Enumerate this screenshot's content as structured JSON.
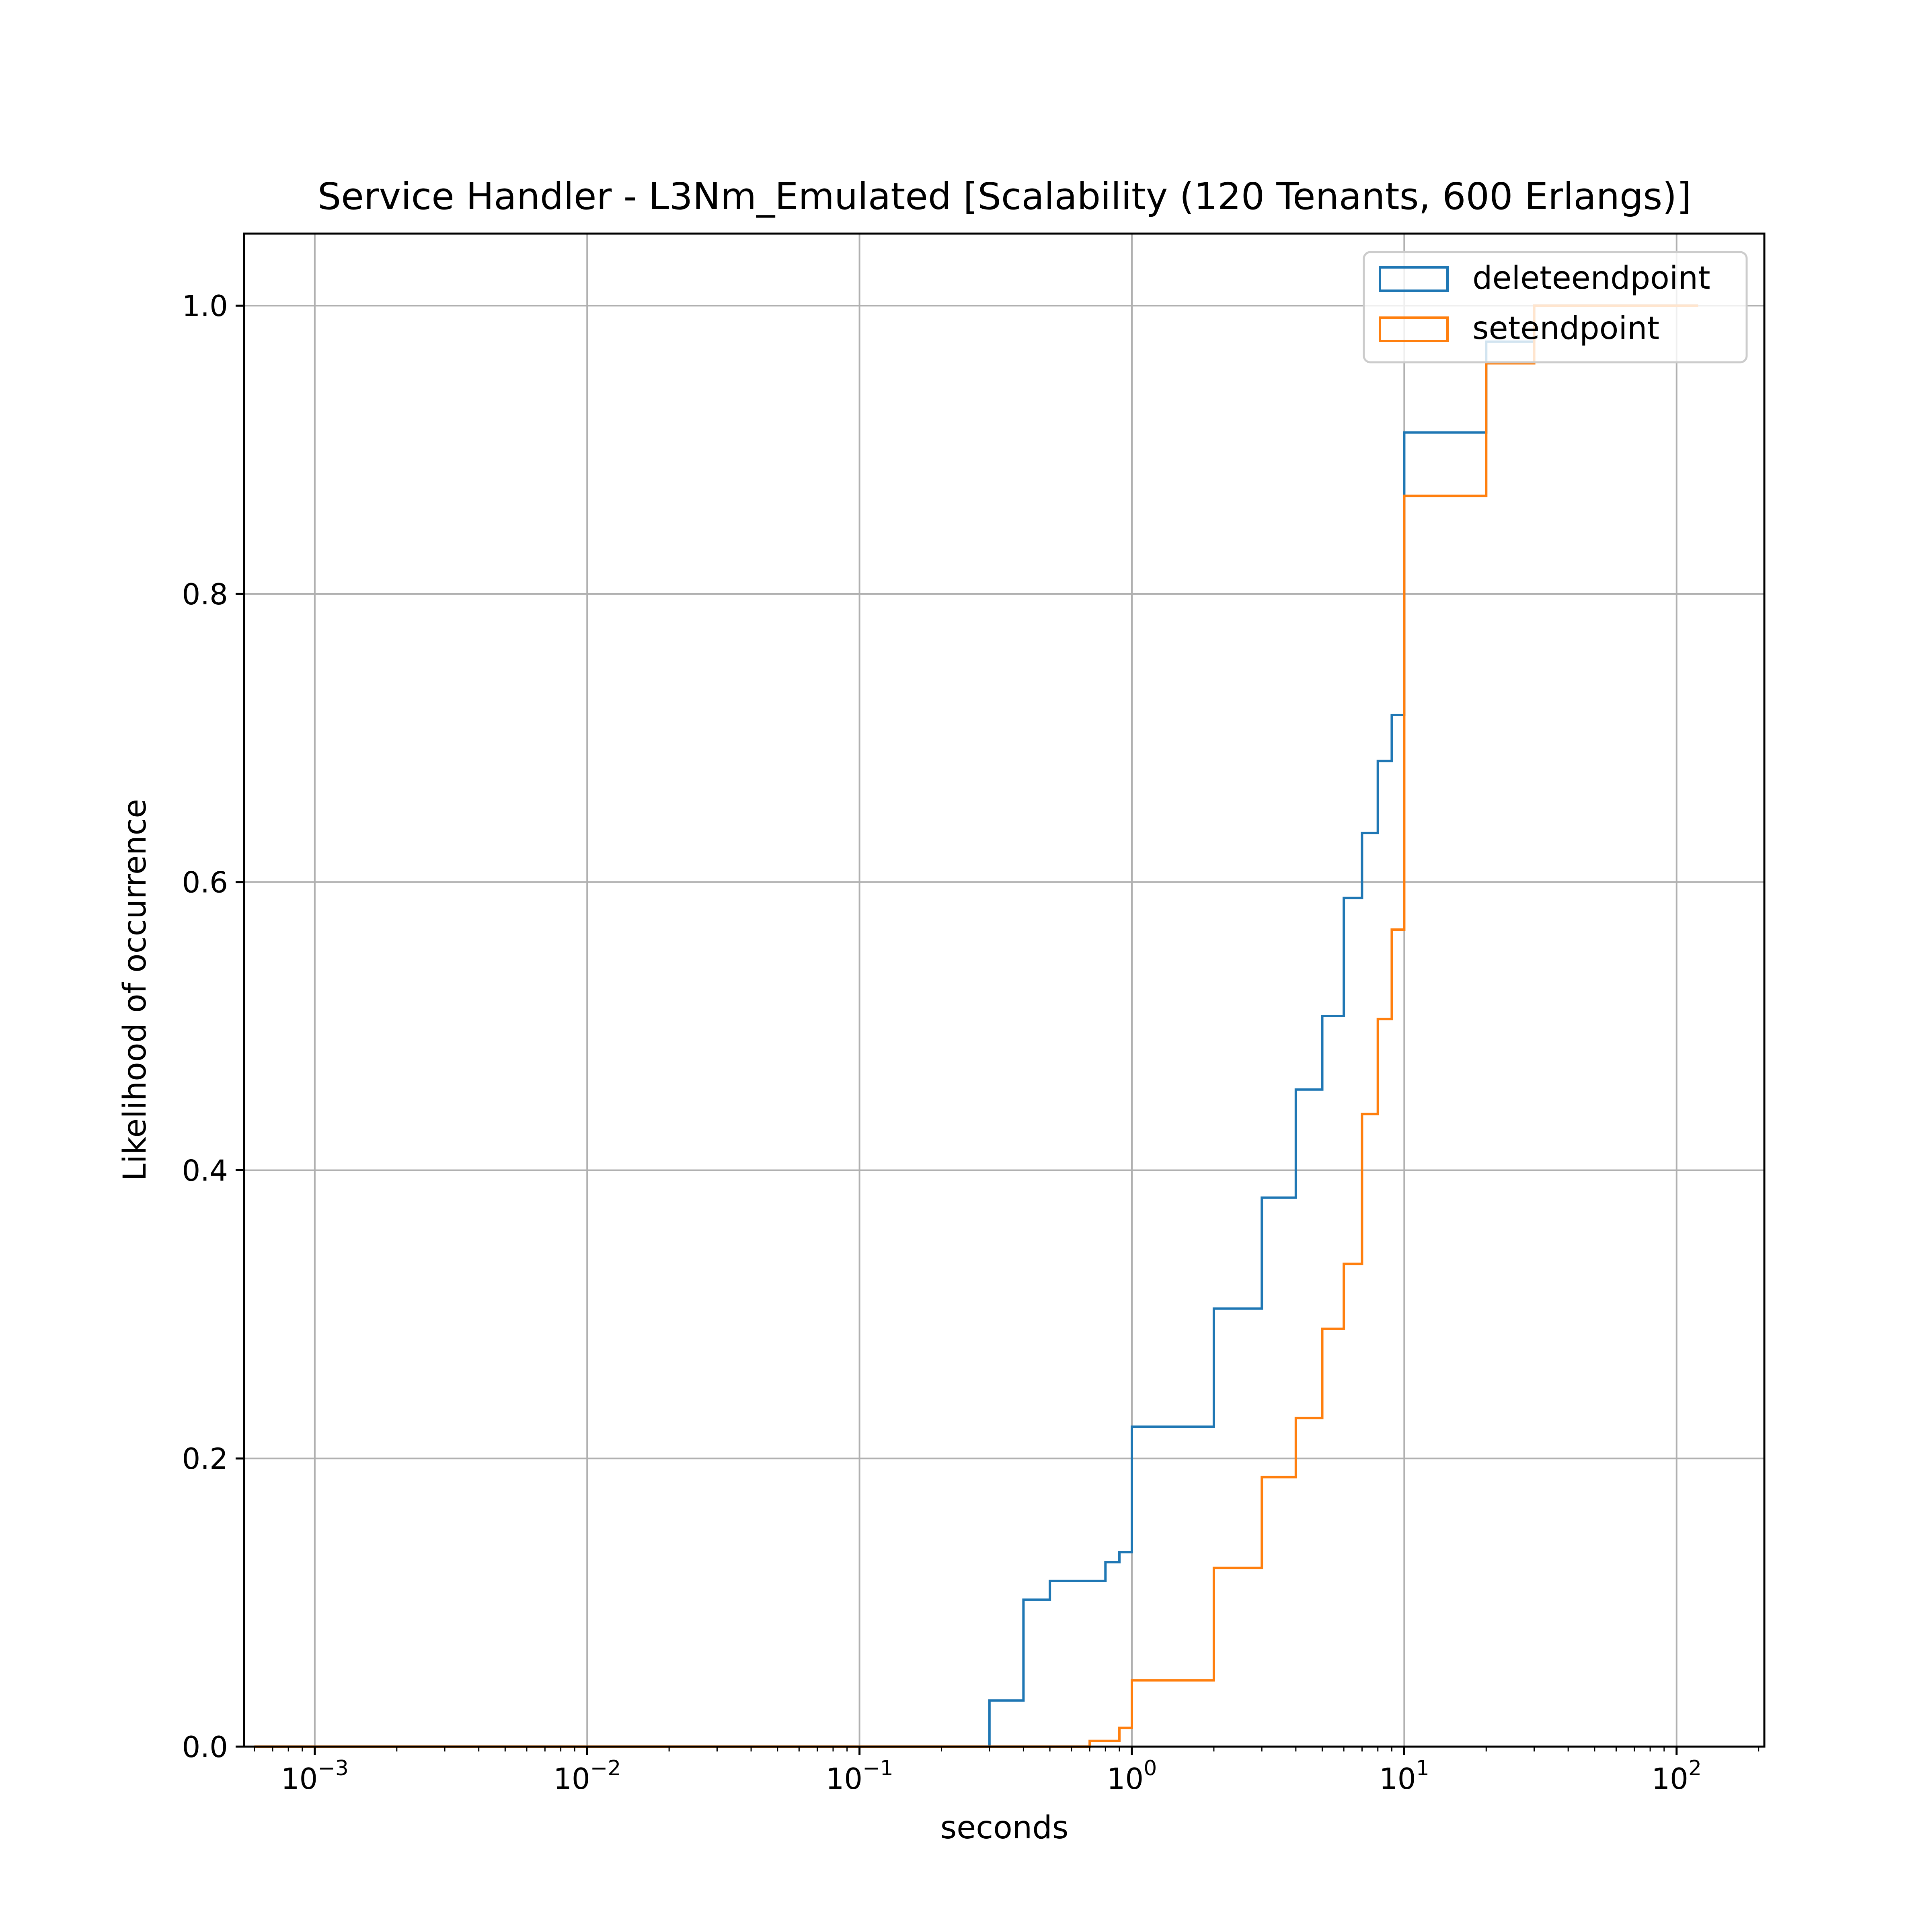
{
  "chart_data": {
    "type": "line",
    "chart_style": "step-histogram-cdf",
    "title": "Service Handler - L3Nm_Emulated [Scalability (120 Tenants, 600 Erlangs)]",
    "xlabel": "seconds",
    "ylabel": "Likelihood of occurrence",
    "xscale": "log",
    "xlim": [
      0.00055,
      210
    ],
    "ylim": [
      0,
      1.05
    ],
    "grid": true,
    "legend_position": "upper right",
    "x_ticks": [
      {
        "base": "10",
        "exp": "−3",
        "value": 0.001
      },
      {
        "base": "10",
        "exp": "−2",
        "value": 0.01
      },
      {
        "base": "10",
        "exp": "−1",
        "value": 0.1
      },
      {
        "base": "10",
        "exp": "0",
        "value": 1
      },
      {
        "base": "10",
        "exp": "1",
        "value": 10
      },
      {
        "base": "10",
        "exp": "2",
        "value": 100
      }
    ],
    "y_ticks": [
      {
        "label": "0.0",
        "value": 0.0
      },
      {
        "label": "0.2",
        "value": 0.2
      },
      {
        "label": "0.4",
        "value": 0.4
      },
      {
        "label": "0.6",
        "value": 0.6
      },
      {
        "label": "0.8",
        "value": 0.8
      },
      {
        "label": "1.0",
        "value": 1.0
      }
    ],
    "series": [
      {
        "name": "deleteendpoint",
        "color": "#1f77b4",
        "steps": [
          [
            0.0006,
            0.0
          ],
          [
            0.3,
            0.032
          ],
          [
            0.4,
            0.102
          ],
          [
            0.5,
            0.115
          ],
          [
            0.8,
            0.128
          ],
          [
            0.9,
            0.135
          ],
          [
            1.0,
            0.222
          ],
          [
            2.0,
            0.304
          ],
          [
            3.0,
            0.381
          ],
          [
            4.0,
            0.456
          ],
          [
            5.0,
            0.507
          ],
          [
            6.0,
            0.589
          ],
          [
            7.0,
            0.634
          ],
          [
            8.0,
            0.684
          ],
          [
            9.0,
            0.716
          ],
          [
            10.0,
            0.912
          ],
          [
            20.0,
            0.975
          ],
          [
            30.0,
            1.0
          ],
          [
            120.0,
            1.0
          ]
        ]
      },
      {
        "name": "setendpoint",
        "color": "#ff7f0e",
        "steps": [
          [
            0.0006,
            0.0
          ],
          [
            0.7,
            0.004
          ],
          [
            0.9,
            0.013
          ],
          [
            1.0,
            0.046
          ],
          [
            2.0,
            0.124
          ],
          [
            3.0,
            0.187
          ],
          [
            4.0,
            0.228
          ],
          [
            5.0,
            0.29
          ],
          [
            6.0,
            0.335
          ],
          [
            7.0,
            0.439
          ],
          [
            8.0,
            0.505
          ],
          [
            9.0,
            0.567
          ],
          [
            10.0,
            0.868
          ],
          [
            20.0,
            0.96
          ],
          [
            30.0,
            1.0
          ],
          [
            120.0,
            1.0
          ]
        ]
      }
    ]
  }
}
